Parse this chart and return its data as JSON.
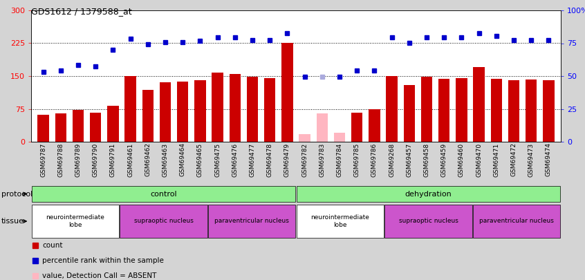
{
  "title": "GDS1612 / 1379588_at",
  "samples": [
    "GSM69787",
    "GSM69788",
    "GSM69789",
    "GSM69790",
    "GSM69791",
    "GSM69461",
    "GSM69462",
    "GSM69463",
    "GSM69464",
    "GSM69465",
    "GSM69475",
    "GSM69476",
    "GSM69477",
    "GSM69478",
    "GSM69479",
    "GSM69782",
    "GSM69783",
    "GSM69784",
    "GSM69785",
    "GSM69786",
    "GSM69268",
    "GSM69457",
    "GSM69458",
    "GSM69459",
    "GSM69460",
    "GSM69470",
    "GSM69471",
    "GSM69472",
    "GSM69473",
    "GSM69474"
  ],
  "bar_values": [
    62,
    65,
    73,
    67,
    82,
    150,
    118,
    135,
    138,
    140,
    158,
    155,
    148,
    145,
    225,
    18,
    65,
    20,
    67,
    75,
    150,
    130,
    148,
    143,
    145,
    170,
    143,
    140,
    142,
    140
  ],
  "bar_absent": [
    false,
    false,
    false,
    false,
    false,
    false,
    false,
    false,
    false,
    false,
    false,
    false,
    false,
    false,
    false,
    true,
    true,
    true,
    false,
    false,
    false,
    false,
    false,
    false,
    false,
    false,
    false,
    false,
    false,
    false
  ],
  "rank_values": [
    160,
    163,
    175,
    172,
    210,
    235,
    222,
    228,
    228,
    230,
    238,
    238,
    232,
    232,
    248,
    148,
    148,
    148,
    163,
    163,
    238,
    225,
    238,
    238,
    238,
    248,
    242,
    232,
    232,
    232
  ],
  "rank_absent": [
    false,
    false,
    false,
    false,
    false,
    false,
    false,
    false,
    false,
    false,
    false,
    false,
    false,
    false,
    false,
    false,
    true,
    false,
    false,
    false,
    false,
    false,
    false,
    false,
    false,
    false,
    false,
    false,
    false,
    false
  ],
  "bar_color": "#CC0000",
  "bar_absent_color": "#FFB6C1",
  "rank_color": "#0000CC",
  "rank_absent_color": "#AAAADD",
  "ylim_left": [
    0,
    300
  ],
  "ylim_right": [
    0,
    100
  ],
  "yticks_left": [
    0,
    75,
    150,
    225,
    300
  ],
  "yticks_right": [
    0,
    25,
    50,
    75,
    100
  ],
  "bg_color": "#d4d4d4",
  "plot_bg_color": "#ffffff",
  "control_color": "#90EE90",
  "dehydration_color": "#90EE90",
  "neuro_color": "#ffffff",
  "supraoptic_color": "#CC55CC",
  "paraventricular_color": "#CC55CC",
  "protocol_groups": [
    {
      "label": "control",
      "start": 0,
      "end": 15
    },
    {
      "label": "dehydration",
      "start": 15,
      "end": 30
    }
  ],
  "tissue_groups": [
    {
      "label": "neurointermediate\nlobe",
      "start": 0,
      "end": 5,
      "type": "neuro"
    },
    {
      "label": "supraoptic nucleus",
      "start": 5,
      "end": 10,
      "type": "supra"
    },
    {
      "label": "paraventricular nucleus",
      "start": 10,
      "end": 15,
      "type": "para"
    },
    {
      "label": "neurointermediate\nlobe",
      "start": 15,
      "end": 20,
      "type": "neuro"
    },
    {
      "label": "supraoptic nucleus",
      "start": 20,
      "end": 25,
      "type": "supra"
    },
    {
      "label": "paraventricular nucleus",
      "start": 25,
      "end": 30,
      "type": "para"
    }
  ]
}
